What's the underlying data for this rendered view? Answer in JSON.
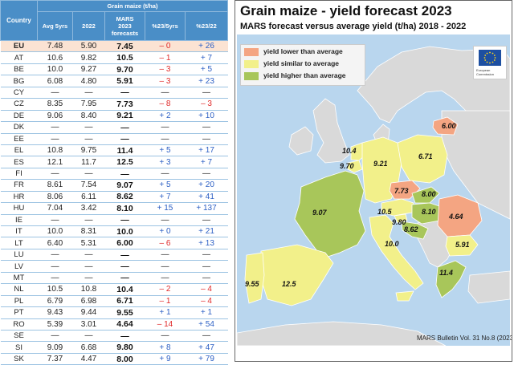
{
  "table": {
    "header": {
      "country": "Country",
      "group": "Grain maize (t/ha)",
      "avg": "Avg 5yrs",
      "y2022": "2022",
      "forecast_l1": "MARS",
      "forecast_l2": "2023",
      "forecast_l3": "forecasts",
      "pct5": "%23/5yrs",
      "pct22": "%23/22"
    },
    "rows": [
      {
        "country": "EU",
        "avg": "7.48",
        "y2022": "5.90",
        "forecast": "7.45",
        "pct5": "– 0",
        "pct22": "+ 26",
        "s5": "neg",
        "s22": "pos"
      },
      {
        "country": "AT",
        "avg": "10.6",
        "y2022": "9.82",
        "forecast": "10.5",
        "pct5": "– 1",
        "pct22": "+ 7",
        "s5": "neg",
        "s22": "pos"
      },
      {
        "country": "BE",
        "avg": "10.0",
        "y2022": "9.27",
        "forecast": "9.70",
        "pct5": "– 3",
        "pct22": "+ 5",
        "s5": "neg",
        "s22": "pos"
      },
      {
        "country": "BG",
        "avg": "6.08",
        "y2022": "4.80",
        "forecast": "5.91",
        "pct5": "– 3",
        "pct22": "+ 23",
        "s5": "neg",
        "s22": "pos"
      },
      {
        "country": "CY",
        "avg": "—",
        "y2022": "—",
        "forecast": "—",
        "pct5": "—",
        "pct22": "—",
        "s5": "nil",
        "s22": "nil"
      },
      {
        "country": "CZ",
        "avg": "8.35",
        "y2022": "7.95",
        "forecast": "7.73",
        "pct5": "– 8",
        "pct22": "– 3",
        "s5": "neg",
        "s22": "neg"
      },
      {
        "country": "DE",
        "avg": "9.06",
        "y2022": "8.40",
        "forecast": "9.21",
        "pct5": "+ 2",
        "pct22": "+ 10",
        "s5": "pos",
        "s22": "pos"
      },
      {
        "country": "DK",
        "avg": "—",
        "y2022": "—",
        "forecast": "—",
        "pct5": "—",
        "pct22": "—",
        "s5": "nil",
        "s22": "nil"
      },
      {
        "country": "EE",
        "avg": "—",
        "y2022": "—",
        "forecast": "—",
        "pct5": "—",
        "pct22": "—",
        "s5": "nil",
        "s22": "nil"
      },
      {
        "country": "EL",
        "avg": "10.8",
        "y2022": "9.75",
        "forecast": "11.4",
        "pct5": "+ 5",
        "pct22": "+ 17",
        "s5": "pos",
        "s22": "pos"
      },
      {
        "country": "ES",
        "avg": "12.1",
        "y2022": "11.7",
        "forecast": "12.5",
        "pct5": "+ 3",
        "pct22": "+ 7",
        "s5": "pos",
        "s22": "pos"
      },
      {
        "country": "FI",
        "avg": "—",
        "y2022": "—",
        "forecast": "—",
        "pct5": "—",
        "pct22": "—",
        "s5": "nil",
        "s22": "nil"
      },
      {
        "country": "FR",
        "avg": "8.61",
        "y2022": "7.54",
        "forecast": "9.07",
        "pct5": "+ 5",
        "pct22": "+ 20",
        "s5": "pos",
        "s22": "pos"
      },
      {
        "country": "HR",
        "avg": "8.06",
        "y2022": "6.11",
        "forecast": "8.62",
        "pct5": "+ 7",
        "pct22": "+ 41",
        "s5": "pos",
        "s22": "pos"
      },
      {
        "country": "HU",
        "avg": "7.04",
        "y2022": "3.42",
        "forecast": "8.10",
        "pct5": "+ 15",
        "pct22": "+ 137",
        "s5": "pos",
        "s22": "pos"
      },
      {
        "country": "IE",
        "avg": "—",
        "y2022": "—",
        "forecast": "—",
        "pct5": "—",
        "pct22": "—",
        "s5": "nil",
        "s22": "nil"
      },
      {
        "country": "IT",
        "avg": "10.0",
        "y2022": "8.31",
        "forecast": "10.0",
        "pct5": "+ 0",
        "pct22": "+ 21",
        "s5": "pos",
        "s22": "pos"
      },
      {
        "country": "LT",
        "avg": "6.40",
        "y2022": "5.31",
        "forecast": "6.00",
        "pct5": "– 6",
        "pct22": "+ 13",
        "s5": "neg",
        "s22": "pos"
      },
      {
        "country": "LU",
        "avg": "—",
        "y2022": "—",
        "forecast": "—",
        "pct5": "—",
        "pct22": "—",
        "s5": "nil",
        "s22": "nil"
      },
      {
        "country": "LV",
        "avg": "—",
        "y2022": "—",
        "forecast": "—",
        "pct5": "—",
        "pct22": "—",
        "s5": "nil",
        "s22": "nil"
      },
      {
        "country": "MT",
        "avg": "—",
        "y2022": "—",
        "forecast": "—",
        "pct5": "—",
        "pct22": "—",
        "s5": "nil",
        "s22": "nil"
      },
      {
        "country": "NL",
        "avg": "10.5",
        "y2022": "10.8",
        "forecast": "10.4",
        "pct5": "– 2",
        "pct22": "– 4",
        "s5": "neg",
        "s22": "neg"
      },
      {
        "country": "PL",
        "avg": "6.79",
        "y2022": "6.98",
        "forecast": "6.71",
        "pct5": "– 1",
        "pct22": "– 4",
        "s5": "neg",
        "s22": "neg"
      },
      {
        "country": "PT",
        "avg": "9.43",
        "y2022": "9.44",
        "forecast": "9.55",
        "pct5": "+ 1",
        "pct22": "+ 1",
        "s5": "pos",
        "s22": "pos"
      },
      {
        "country": "RO",
        "avg": "5.39",
        "y2022": "3.01",
        "forecast": "4.64",
        "pct5": "– 14",
        "pct22": "+ 54",
        "s5": "neg",
        "s22": "pos"
      },
      {
        "country": "SE",
        "avg": "—",
        "y2022": "—",
        "forecast": "—",
        "pct5": "—",
        "pct22": "—",
        "s5": "nil",
        "s22": "nil"
      },
      {
        "country": "SI",
        "avg": "9.09",
        "y2022": "6.68",
        "forecast": "9.80",
        "pct5": "+ 8",
        "pct22": "+ 47",
        "s5": "pos",
        "s22": "pos"
      },
      {
        "country": "SK",
        "avg": "7.37",
        "y2022": "4.47",
        "forecast": "8.00",
        "pct5": "+ 9",
        "pct22": "+ 79",
        "s5": "pos",
        "s22": "pos"
      }
    ]
  },
  "map": {
    "title": "Grain maize - yield forecast 2023",
    "subtitle": "MARS forecast versus average yield (t/ha) 2018 - 2022",
    "credit": "MARS Bulletin Vol. 31 No.8 (2023)",
    "logo_text": "European Commission",
    "legend": [
      {
        "label": "yield lower than average",
        "color": "#f4a582"
      },
      {
        "label": "yield similar to average",
        "color": "#f2f08a"
      },
      {
        "label": "yield higher than average",
        "color": "#a8c65a"
      }
    ],
    "colors": {
      "sea": "#b9d6ee",
      "land": "#d9d9d9",
      "lower": "#f4a582",
      "similar": "#f2f08a",
      "higher": "#a8c65a"
    },
    "values": {
      "LT": "6.00",
      "NL": "10.4",
      "BE": "9.70",
      "DE": "9.21",
      "PL": "6.71",
      "CZ": "7.73",
      "SK": "8.00",
      "AT": "10.5",
      "HU": "8.10",
      "SI": "9.80",
      "HR": "8.62",
      "RO": "4.64",
      "FR": "9.07",
      "IT": "10.0",
      "BG": "5.91",
      "PT": "9.55",
      "ES": "12.5",
      "EL": "11.4"
    }
  }
}
